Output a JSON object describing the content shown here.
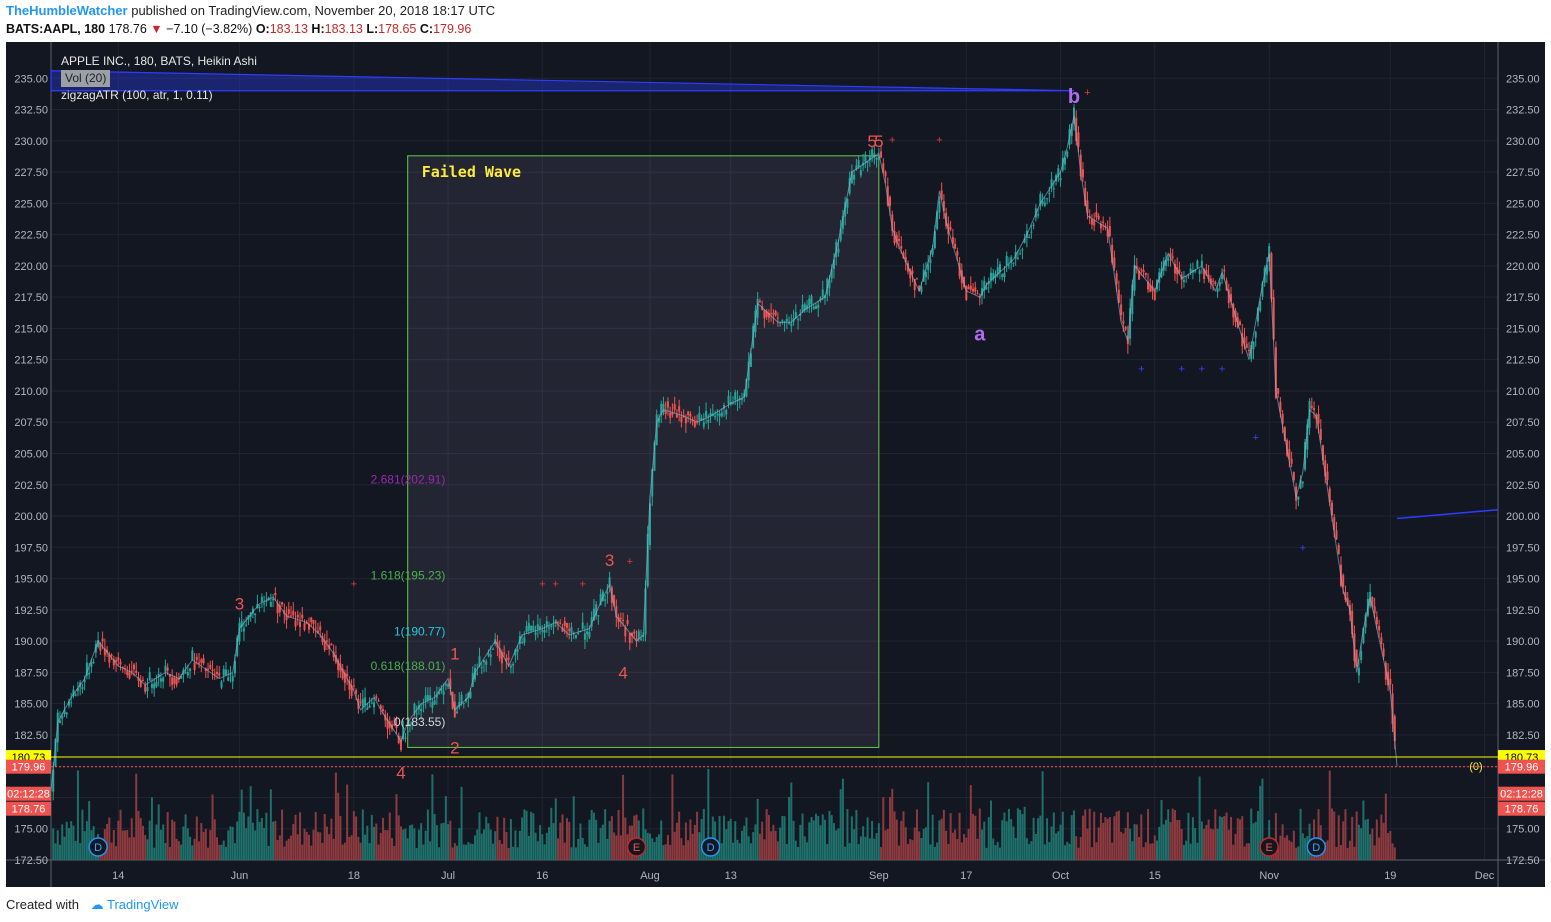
{
  "header": {
    "user": "TheHumbleWatcher",
    "published": "published on TradingView.com, November 20, 2018 18:17 UTC",
    "symbol": "BATS:AAPL, 180",
    "last": "178.76",
    "change": "−7.10 (−3.82%)",
    "o_label": "O:",
    "o_val": "183.13",
    "h_label": "H:",
    "h_val": "183.13",
    "l_label": "L:",
    "l_val": "178.65",
    "c_label": "C:",
    "c_val": "179.96"
  },
  "legend": {
    "title": "APPLE INC., 180, BATS, Heikin Ashi",
    "vol": "Vol (20)",
    "zigzag": "zigzagATR (100, atr, 1, 0.11)"
  },
  "footer": {
    "created": "Created with",
    "brand": "TradingView"
  },
  "colors": {
    "background": "#131722",
    "up": "#26a69a",
    "down": "#ef5350",
    "volume_up": "#1f6f6a",
    "volume_down": "#8c3a3f",
    "fib_green": "#4caf50",
    "fib_cyan": "#26c6da",
    "fib_purple": "#9c27b0",
    "wave_label": "#ef5350",
    "abc_label": "#b36bf2",
    "box_border": "#66cc44",
    "price_line": "#ffff00",
    "trendline": "#2f3cff"
  },
  "chart_data": {
    "type": "candlestick",
    "title": "APPLE INC., 180, BATS, Heikin Ashi",
    "ylim": [
      172.5,
      236.3
    ],
    "y_ticks": [
      172.5,
      175,
      177.5,
      180,
      182.5,
      185,
      187.5,
      190,
      192.5,
      195,
      197.5,
      200,
      202.5,
      205,
      207.5,
      210,
      212.5,
      215,
      217.5,
      220,
      222.5,
      225,
      227.5,
      230,
      232.5,
      235
    ],
    "y_tick_labels": [
      "172.50",
      "175.00",
      "",
      "",
      "182.50",
      "185.00",
      "187.50",
      "190.00",
      "192.50",
      "195.00",
      "197.50",
      "200.00",
      "202.50",
      "205.00",
      "207.50",
      "210.00",
      "212.50",
      "215.00",
      "217.50",
      "220.00",
      "222.50",
      "225.00",
      "227.50",
      "230.00",
      "232.50",
      "235.00"
    ],
    "x_ticks": [
      {
        "date": "2018-05-14",
        "label": "14"
      },
      {
        "date": "2018-06-01",
        "label": "Jun"
      },
      {
        "date": "2018-06-18",
        "label": "18"
      },
      {
        "date": "2018-07-02",
        "label": "Jul"
      },
      {
        "date": "2018-07-16",
        "label": "16"
      },
      {
        "date": "2018-08-01",
        "label": "Aug"
      },
      {
        "date": "2018-08-13",
        "label": "13"
      },
      {
        "date": "2018-09-04",
        "label": "Sep"
      },
      {
        "date": "2018-09-17",
        "label": "17"
      },
      {
        "date": "2018-10-01",
        "label": "Oct"
      },
      {
        "date": "2018-10-15",
        "label": "15"
      },
      {
        "date": "2018-11-01",
        "label": "Nov"
      },
      {
        "date": "2018-11-19",
        "label": "19"
      },
      {
        "date": "2018-12-03",
        "label": "Dec"
      }
    ],
    "x_range": [
      "2018-05-04",
      "2018-12-05"
    ],
    "price_path": [
      [
        "2018-05-04",
        178.0
      ],
      [
        "2018-05-05",
        183.5
      ],
      [
        "2018-05-07",
        185.5
      ],
      [
        "2018-05-09",
        187.0
      ],
      [
        "2018-05-11",
        190.0
      ],
      [
        "2018-05-14",
        188.0
      ],
      [
        "2018-05-16",
        187.5
      ],
      [
        "2018-05-18",
        186.5
      ],
      [
        "2018-05-21",
        187.5
      ],
      [
        "2018-05-23",
        187.0
      ],
      [
        "2018-05-25",
        188.5
      ],
      [
        "2018-05-29",
        187.0
      ],
      [
        "2018-05-31",
        187.5
      ],
      [
        "2018-06-01",
        191.0
      ],
      [
        "2018-06-04",
        193.0
      ],
      [
        "2018-06-06",
        193.5
      ],
      [
        "2018-06-08",
        192.0
      ],
      [
        "2018-06-11",
        191.5
      ],
      [
        "2018-06-13",
        190.5
      ],
      [
        "2018-06-15",
        189.0
      ],
      [
        "2018-06-18",
        186.0
      ],
      [
        "2018-06-19",
        184.5
      ],
      [
        "2018-06-21",
        185.5
      ],
      [
        "2018-06-22",
        184.5
      ],
      [
        "2018-06-25",
        182.0
      ],
      [
        "2018-06-26",
        183.5
      ],
      [
        "2018-06-28",
        185.0
      ],
      [
        "2018-06-30",
        185.5
      ],
      [
        "2018-07-02",
        187.0
      ],
      [
        "2018-07-03",
        184.5
      ],
      [
        "2018-07-05",
        185.5
      ],
      [
        "2018-07-06",
        187.5
      ],
      [
        "2018-07-09",
        190.0
      ],
      [
        "2018-07-11",
        188.0
      ],
      [
        "2018-07-13",
        190.5
      ],
      [
        "2018-07-16",
        191.0
      ],
      [
        "2018-07-18",
        191.5
      ],
      [
        "2018-07-20",
        190.5
      ],
      [
        "2018-07-23",
        191.0
      ],
      [
        "2018-07-25",
        193.5
      ],
      [
        "2018-07-26",
        194.5
      ],
      [
        "2018-07-27",
        192.0
      ],
      [
        "2018-07-30",
        190.0
      ],
      [
        "2018-07-31",
        190.5
      ],
      [
        "2018-08-01",
        201.5
      ],
      [
        "2018-08-02",
        207.5
      ],
      [
        "2018-08-03",
        208.5
      ],
      [
        "2018-08-06",
        208.0
      ],
      [
        "2018-08-08",
        207.5
      ],
      [
        "2018-08-10",
        208.0
      ],
      [
        "2018-08-13",
        209.0
      ],
      [
        "2018-08-15",
        209.5
      ],
      [
        "2018-08-17",
        217.0
      ],
      [
        "2018-08-20",
        215.5
      ],
      [
        "2018-08-22",
        215.5
      ],
      [
        "2018-08-24",
        216.5
      ],
      [
        "2018-08-27",
        217.5
      ],
      [
        "2018-08-29",
        222.0
      ],
      [
        "2018-08-31",
        227.5
      ],
      [
        "2018-09-04",
        229.0
      ],
      [
        "2018-09-05",
        226.5
      ],
      [
        "2018-09-06",
        223.0
      ],
      [
        "2018-09-07",
        221.5
      ],
      [
        "2018-09-10",
        218.0
      ],
      [
        "2018-09-12",
        221.5
      ],
      [
        "2018-09-13",
        226.0
      ],
      [
        "2018-09-14",
        223.5
      ],
      [
        "2018-09-17",
        218.0
      ],
      [
        "2018-09-19",
        217.5
      ],
      [
        "2018-09-20",
        218.5
      ],
      [
        "2018-09-24",
        220.5
      ],
      [
        "2018-09-26",
        222.5
      ],
      [
        "2018-09-28",
        225.0
      ],
      [
        "2018-10-01",
        227.5
      ],
      [
        "2018-10-02",
        229.5
      ],
      [
        "2018-10-03",
        232.0
      ],
      [
        "2018-10-04",
        227.5
      ],
      [
        "2018-10-05",
        224.0
      ],
      [
        "2018-10-08",
        223.0
      ],
      [
        "2018-10-10",
        215.5
      ],
      [
        "2018-10-11",
        214.0
      ],
      [
        "2018-10-12",
        220.0
      ],
      [
        "2018-10-15",
        218.0
      ],
      [
        "2018-10-17",
        221.0
      ],
      [
        "2018-10-19",
        219.0
      ],
      [
        "2018-10-22",
        220.0
      ],
      [
        "2018-10-24",
        218.0
      ],
      [
        "2018-10-25",
        219.5
      ],
      [
        "2018-10-29",
        212.5
      ],
      [
        "2018-10-31",
        218.5
      ],
      [
        "2018-11-01",
        221.0
      ],
      [
        "2018-11-02",
        210.0
      ],
      [
        "2018-11-05",
        201.5
      ],
      [
        "2018-11-06",
        203.5
      ],
      [
        "2018-11-07",
        208.5
      ],
      [
        "2018-11-08",
        208.0
      ],
      [
        "2018-11-09",
        204.5
      ],
      [
        "2018-11-12",
        194.0
      ],
      [
        "2018-11-13",
        192.5
      ],
      [
        "2018-11-14",
        187.5
      ],
      [
        "2018-11-15",
        191.0
      ],
      [
        "2018-11-16",
        193.5
      ],
      [
        "2018-11-19",
        186.0
      ],
      [
        "2018-11-20",
        180.0
      ]
    ],
    "current_price": 180.73,
    "price_tags": [
      {
        "value": 180.73,
        "label": "180.73",
        "kind": "yellow"
      },
      {
        "value": 179.96,
        "label": "179.96",
        "kind": "red"
      },
      {
        "value": 177.8,
        "label": "02:12:28",
        "kind": "red"
      },
      {
        "value": 176.6,
        "label": "178.76",
        "kind": "red"
      }
    ],
    "zero_label": "(0)",
    "fib_levels": [
      {
        "ratio": "2.681",
        "value": 202.91,
        "label": "2.681(202.91)",
        "color": "#9c27b0"
      },
      {
        "ratio": "1.618",
        "value": 195.23,
        "label": "1.618(195.23)",
        "color": "#4caf50"
      },
      {
        "ratio": "1",
        "value": 190.77,
        "label": "1(190.77)",
        "color": "#26c6da"
      },
      {
        "ratio": "0.618",
        "value": 188.01,
        "label": "0.618(188.01)",
        "color": "#4caf50"
      },
      {
        "ratio": "0",
        "value": 183.55,
        "label": "0(183.55)",
        "color": "#cfd8dc"
      }
    ],
    "wave_labels": [
      {
        "date": "2018-06-01",
        "price": 193.0,
        "label": "3"
      },
      {
        "date": "2018-06-25",
        "price": 179.5,
        "label": "4"
      },
      {
        "date": "2018-07-03",
        "price": 189.0,
        "label": "1"
      },
      {
        "date": "2018-07-03",
        "price": 181.5,
        "label": "2"
      },
      {
        "date": "2018-07-26",
        "price": 196.5,
        "label": "3"
      },
      {
        "date": "2018-07-28",
        "price": 187.5,
        "label": "4"
      },
      {
        "date": "2018-09-03",
        "price": 230.0,
        "label": "5"
      },
      {
        "date": "2018-09-04",
        "price": 230.0,
        "label": "5"
      }
    ],
    "abc_labels": [
      {
        "date": "2018-09-19",
        "price": 214.5,
        "label": "a"
      },
      {
        "date": "2018-10-03",
        "price": 233.5,
        "label": "b"
      }
    ],
    "box": {
      "label": "Failed Wave",
      "x0": "2018-06-26",
      "x1": "2018-09-04",
      "y0": 181.5,
      "y1": 228.8
    },
    "markers_top": [
      {
        "date": "2018-06-18",
        "price": 194.6
      },
      {
        "date": "2018-07-16",
        "price": 194.6
      },
      {
        "date": "2018-07-18",
        "price": 194.6
      },
      {
        "date": "2018-07-22",
        "price": 194.6
      },
      {
        "date": "2018-07-29",
        "price": 196.4
      },
      {
        "date": "2018-09-06",
        "price": 230.1
      },
      {
        "date": "2018-09-13",
        "price": 230.1
      },
      {
        "date": "2018-10-05",
        "price": 233.9
      }
    ],
    "markers_bottom": [
      {
        "date": "2018-10-13",
        "price": 211.8
      },
      {
        "date": "2018-10-19",
        "price": 211.8
      },
      {
        "date": "2018-10-22",
        "price": 211.8
      },
      {
        "date": "2018-10-25",
        "price": 211.8
      },
      {
        "date": "2018-10-30",
        "price": 206.3
      },
      {
        "date": "2018-11-06",
        "price": 197.5
      }
    ],
    "event_badges": [
      {
        "date": "2018-05-11",
        "label": "D"
      },
      {
        "date": "2018-07-30",
        "label": "E"
      },
      {
        "date": "2018-08-10",
        "label": "D"
      },
      {
        "date": "2018-11-01",
        "label": "E"
      },
      {
        "date": "2018-11-08",
        "label": "D"
      }
    ],
    "trendlines": [
      {
        "from": [
          "2018-05-04",
          234.0
        ],
        "to": [
          "2018-10-03",
          234.0
        ],
        "band_top": 235.6
      },
      {
        "from": [
          "2018-11-20",
          199.8
        ],
        "to": [
          "2018-12-05",
          200.5
        ]
      }
    ]
  }
}
